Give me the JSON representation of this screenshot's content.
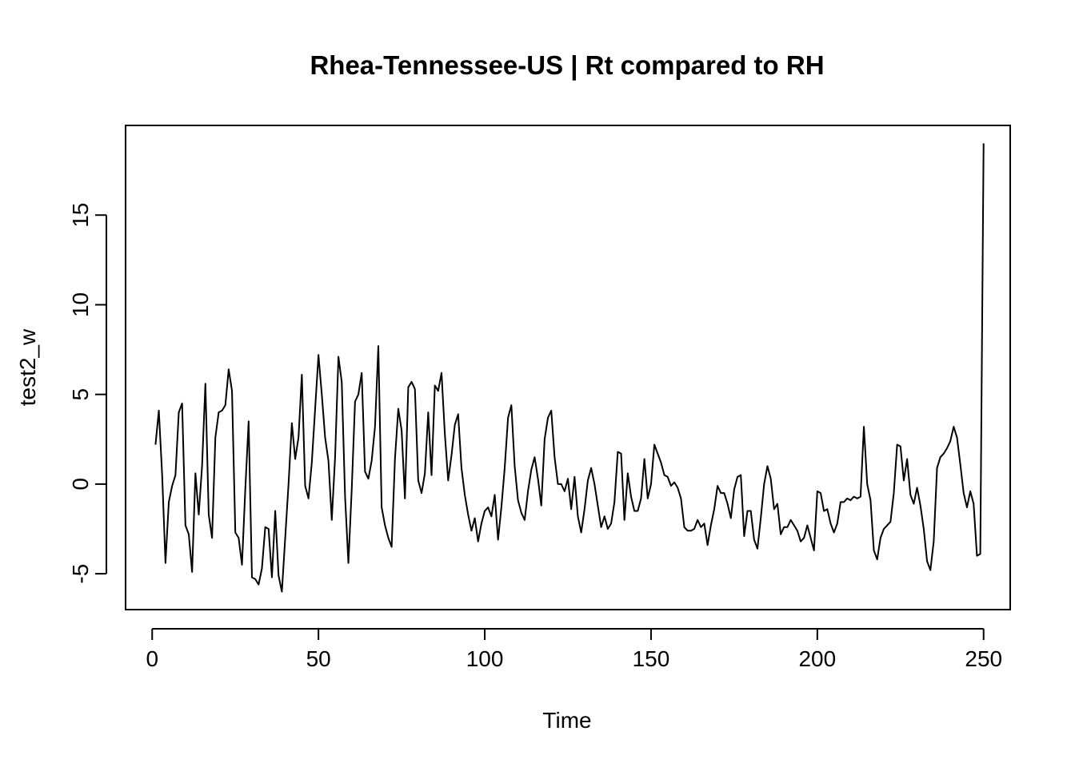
{
  "chart_data": {
    "type": "line",
    "title": "Rhea-Tennessee-US | Rt compared to RH",
    "xlabel": "Time",
    "ylabel": "test2_w",
    "xlim": [
      -8,
      258
    ],
    "ylim": [
      -7,
      20
    ],
    "x_ticks": [
      0,
      50,
      100,
      150,
      200,
      250
    ],
    "y_ticks": [
      -5,
      0,
      5,
      10,
      15
    ],
    "grid": false,
    "legend": "none",
    "line_color": "#000000",
    "series": [
      {
        "x_start": 1,
        "x_step": 1,
        "values": [
          2.2,
          4.1,
          0.5,
          -4.4,
          -1.0,
          -0.1,
          0.5,
          4.0,
          4.5,
          -2.3,
          -2.8,
          -4.9,
          0.6,
          -1.7,
          1.0,
          5.6,
          -1.7,
          -3.0,
          2.6,
          4.0,
          4.1,
          4.4,
          6.4,
          5.2,
          -2.7,
          -3.0,
          -4.5,
          -0.3,
          3.5,
          -5.2,
          -5.3,
          -5.6,
          -4.7,
          -2.4,
          -2.5,
          -5.2,
          -1.5,
          -5.1,
          -6.0,
          -3.0,
          0.0,
          3.4,
          1.4,
          2.6,
          6.1,
          -0.1,
          -0.8,
          1.2,
          4.2,
          7.2,
          5.0,
          2.6,
          1.3,
          -2.0,
          1.5,
          7.1,
          5.7,
          -0.7,
          -4.4,
          -0.3,
          4.6,
          5.0,
          6.2,
          0.7,
          0.3,
          1.3,
          3.2,
          7.7,
          -1.3,
          -2.3,
          -3.0,
          -3.5,
          1.4,
          4.2,
          3.0,
          -0.8,
          5.4,
          5.7,
          5.3,
          0.2,
          -0.5,
          0.6,
          4.0,
          0.5,
          5.5,
          5.2,
          6.2,
          2.8,
          0.2,
          1.6,
          3.3,
          3.9,
          0.9,
          -0.6,
          -1.7,
          -2.6,
          -1.9,
          -3.2,
          -2.2,
          -1.5,
          -1.3,
          -1.8,
          -0.6,
          -3.1,
          -1.3,
          0.9,
          3.7,
          4.4,
          1.0,
          -0.9,
          -1.6,
          -2.0,
          -0.4,
          0.8,
          1.5,
          0.3,
          -1.2,
          2.5,
          3.7,
          4.1,
          1.5,
          0.0,
          0.0,
          -0.4,
          0.3,
          -1.4,
          0.4,
          -1.8,
          -2.7,
          -1.4,
          0.2,
          0.9,
          0.0,
          -1.2,
          -2.4,
          -1.8,
          -2.5,
          -2.2,
          -1.0,
          1.8,
          1.7,
          -2.0,
          0.6,
          -0.7,
          -1.5,
          -1.5,
          -0.8,
          1.4,
          -0.8,
          0.0,
          2.2,
          1.7,
          1.2,
          0.5,
          0.4,
          -0.1,
          0.1,
          -0.2,
          -0.8,
          -2.4,
          -2.6,
          -2.6,
          -2.5,
          -2.0,
          -2.4,
          -2.2,
          -3.4,
          -2.3,
          -1.4,
          -0.1,
          -0.5,
          -0.5,
          -1.1,
          -1.9,
          -0.3,
          0.4,
          0.5,
          -2.9,
          -1.5,
          -1.5,
          -3.1,
          -3.6,
          -1.9,
          0.0,
          1.0,
          0.3,
          -1.4,
          -1.1,
          -2.8,
          -2.4,
          -2.4,
          -2.0,
          -2.3,
          -2.6,
          -3.2,
          -3.0,
          -2.3,
          -3.0,
          -3.7,
          -0.4,
          -0.5,
          -1.5,
          -1.4,
          -2.2,
          -2.7,
          -2.2,
          -1.0,
          -1.0,
          -0.8,
          -0.9,
          -0.7,
          -0.8,
          -0.7,
          3.2,
          0.0,
          -0.9,
          -3.7,
          -4.2,
          -3.0,
          -2.5,
          -2.3,
          -2.1,
          -0.5,
          2.2,
          2.1,
          0.2,
          1.4,
          -0.6,
          -1.1,
          -0.2,
          -1.2,
          -2.5,
          -4.3,
          -4.8,
          -3.2,
          0.9,
          1.5,
          1.7,
          2.0,
          2.4,
          3.2,
          2.6,
          1.1,
          -0.5,
          -1.3,
          -0.4,
          -1.1,
          -4.0,
          -3.9,
          19.0
        ]
      }
    ]
  }
}
